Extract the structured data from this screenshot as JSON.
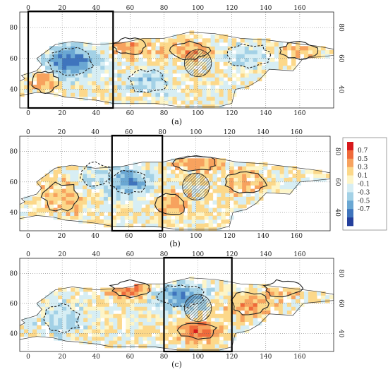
{
  "chart_data": [
    {
      "type": "heatmap",
      "panel_label": "(a)",
      "x_ticks": [
        "0",
        "20",
        "40",
        "60",
        "80",
        "100",
        "120",
        "140",
        "160"
      ],
      "y_ticks": [
        "40",
        "60",
        "80"
      ],
      "xlim": [
        -5,
        180
      ],
      "ylim": [
        28,
        90
      ],
      "highlight_box": {
        "lon": [
          0,
          50
        ],
        "lat": [
          30,
          90
        ]
      },
      "grid": true
    },
    {
      "type": "heatmap",
      "panel_label": "(b)",
      "x_ticks": [
        "0",
        "20",
        "40",
        "60",
        "80",
        "100",
        "120",
        "140",
        "160"
      ],
      "y_ticks": [
        "40",
        "60",
        "80"
      ],
      "xlim": [
        -5,
        180
      ],
      "ylim": [
        28,
        90
      ],
      "highlight_box": {
        "lon": [
          50,
          80
        ],
        "lat": [
          30,
          90
        ]
      },
      "grid": true
    },
    {
      "type": "heatmap",
      "panel_label": "(c)",
      "x_ticks": [
        "0",
        "20",
        "40",
        "60",
        "80",
        "100",
        "120",
        "140",
        "160"
      ],
      "y_ticks": [
        "40",
        "60",
        "80"
      ],
      "xlim": [
        -5,
        180
      ],
      "ylim": [
        28,
        90
      ],
      "highlight_box": {
        "lon": [
          80,
          120
        ],
        "lat": [
          30,
          90
        ]
      },
      "grid": true
    }
  ],
  "colorbar": {
    "labels": [
      "0.7",
      "0.5",
      "0.3",
      "0.1",
      "-0.1",
      "-0.3",
      "-0.5",
      "-0.7"
    ],
    "colors": [
      "#d7191c",
      "#ef6a3a",
      "#f7a25e",
      "#fcd88a",
      "#fdf5c8",
      "#d7eef4",
      "#a3d1e6",
      "#6aa7d3",
      "#3f74bd",
      "#243f9c"
    ]
  }
}
